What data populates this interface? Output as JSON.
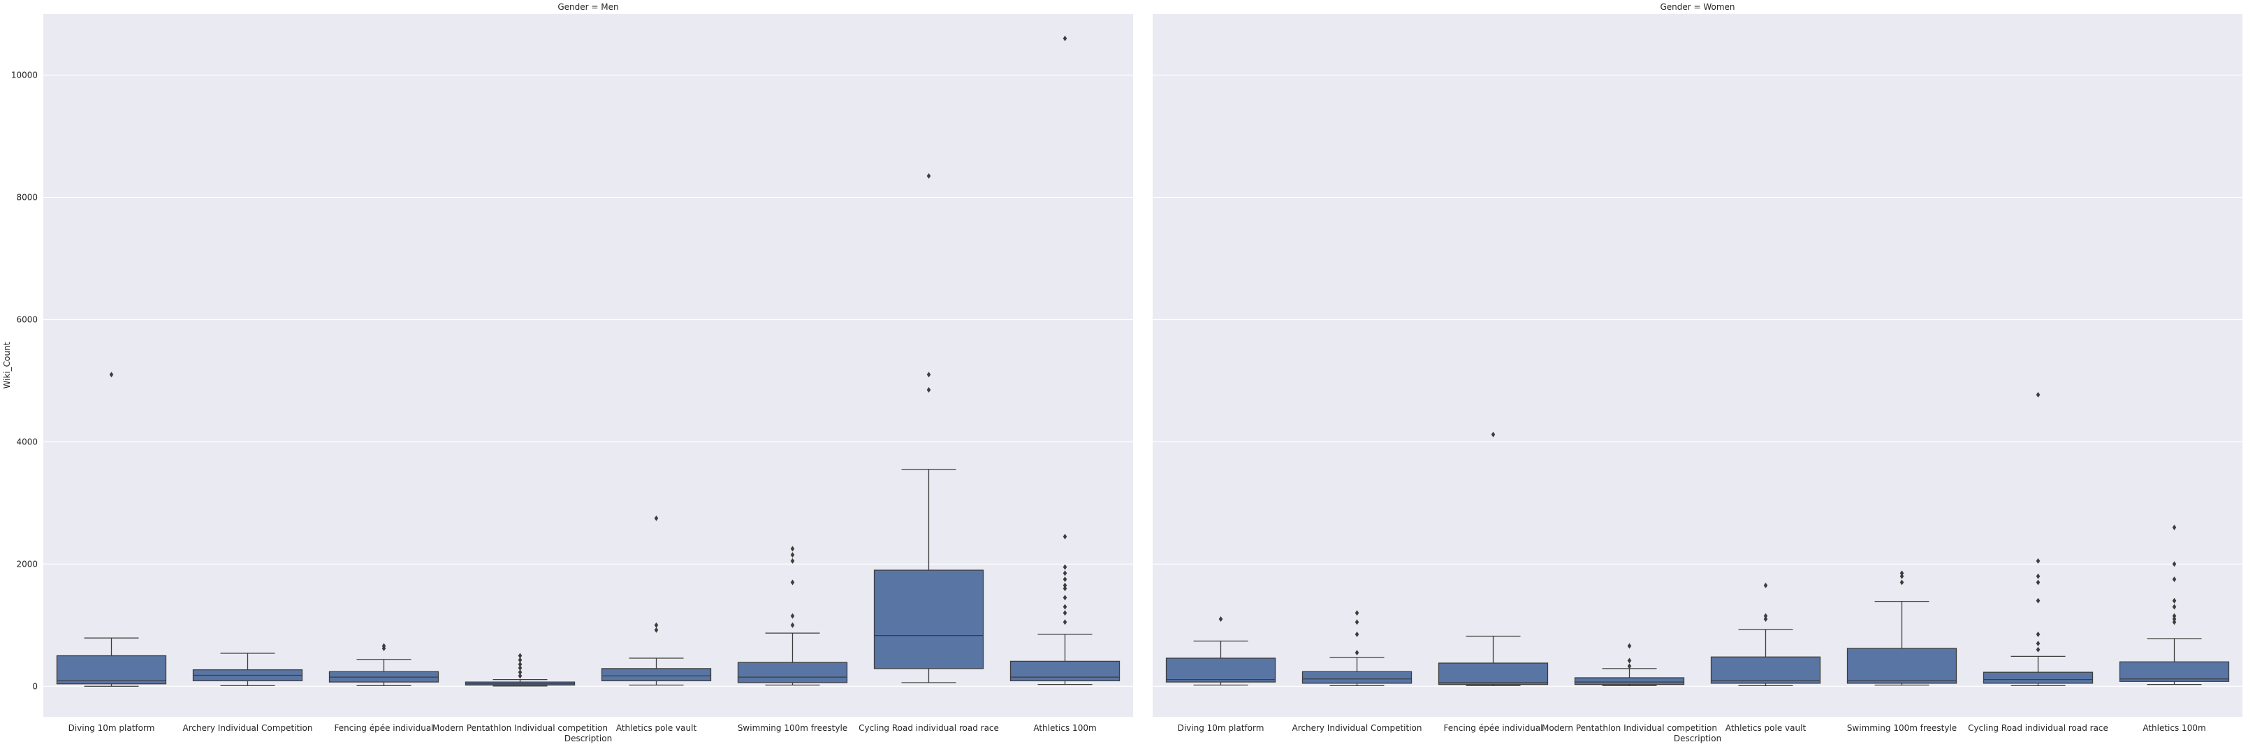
{
  "chart_data": {
    "type": "box",
    "ylabel": "Wiki_Count",
    "xlabel": "Description",
    "ylim": [
      -500,
      11000
    ],
    "yticks": [
      0,
      2000,
      4000,
      6000,
      8000,
      10000
    ],
    "grid": true,
    "background": "#eaeaf2",
    "grid_color": "#ffffff",
    "box_color": "#5975a4",
    "categories": [
      "Diving 10m platform",
      "Archery Individual Competition",
      "Fencing épée individual",
      "Modern Pentathlon Individual competition",
      "Athletics pole vault",
      "Swimming 100m freestyle",
      "Cycling Road individual road race",
      "Athletics 100m"
    ],
    "panels": [
      {
        "title": "Gender = Men",
        "boxes": [
          {
            "whislo": 0,
            "q1": 40,
            "med": 90,
            "q3": 500,
            "whishi": 790,
            "fliers": [
              5100
            ]
          },
          {
            "whislo": 10,
            "q1": 90,
            "med": 180,
            "q3": 270,
            "whishi": 540,
            "fliers": []
          },
          {
            "whislo": 10,
            "q1": 70,
            "med": 150,
            "q3": 240,
            "whishi": 440,
            "fliers": [
              620,
              660
            ]
          },
          {
            "whislo": 5,
            "q1": 20,
            "med": 40,
            "q3": 70,
            "whishi": 110,
            "fliers": [
              170,
              230,
              300,
              360,
              430,
              500
            ]
          },
          {
            "whislo": 20,
            "q1": 90,
            "med": 170,
            "q3": 290,
            "whishi": 460,
            "fliers": [
              920,
              1000,
              2750
            ]
          },
          {
            "whislo": 20,
            "q1": 60,
            "med": 150,
            "q3": 390,
            "whishi": 870,
            "fliers": [
              1000,
              1150,
              1700,
              2050,
              2150,
              2250
            ]
          },
          {
            "whislo": 60,
            "q1": 290,
            "med": 830,
            "q3": 1900,
            "whishi": 3550,
            "fliers": [
              4850,
              5100,
              8350
            ]
          },
          {
            "whislo": 30,
            "q1": 90,
            "med": 150,
            "q3": 410,
            "whishi": 850,
            "fliers": [
              1050,
              1200,
              1300,
              1450,
              1600,
              1650,
              1750,
              1850,
              1950,
              2450,
              10600
            ]
          }
        ]
      },
      {
        "title": "Gender = Women",
        "boxes": [
          {
            "whislo": 20,
            "q1": 70,
            "med": 110,
            "q3": 460,
            "whishi": 740,
            "fliers": [
              1100
            ]
          },
          {
            "whislo": 10,
            "q1": 50,
            "med": 120,
            "q3": 240,
            "whishi": 470,
            "fliers": [
              550,
              850,
              1050,
              1200
            ]
          },
          {
            "whislo": 10,
            "q1": 30,
            "med": 60,
            "q3": 380,
            "whishi": 820,
            "fliers": [
              4120
            ]
          },
          {
            "whislo": 10,
            "q1": 30,
            "med": 70,
            "q3": 140,
            "whishi": 290,
            "fliers": [
              330,
              420,
              660
            ]
          },
          {
            "whislo": 10,
            "q1": 50,
            "med": 90,
            "q3": 480,
            "whishi": 930,
            "fliers": [
              1100,
              1150,
              1650
            ]
          },
          {
            "whislo": 20,
            "q1": 50,
            "med": 90,
            "q3": 620,
            "whishi": 1390,
            "fliers": [
              1700,
              1800,
              1850
            ]
          },
          {
            "whislo": 10,
            "q1": 50,
            "med": 110,
            "q3": 230,
            "whishi": 490,
            "fliers": [
              600,
              700,
              850,
              1400,
              1700,
              1800,
              2050,
              4770
            ]
          },
          {
            "whislo": 30,
            "q1": 80,
            "med": 120,
            "q3": 400,
            "whishi": 780,
            "fliers": [
              1050,
              1100,
              1150,
              1300,
              1400,
              1750,
              2000,
              2600
            ]
          }
        ]
      }
    ]
  }
}
